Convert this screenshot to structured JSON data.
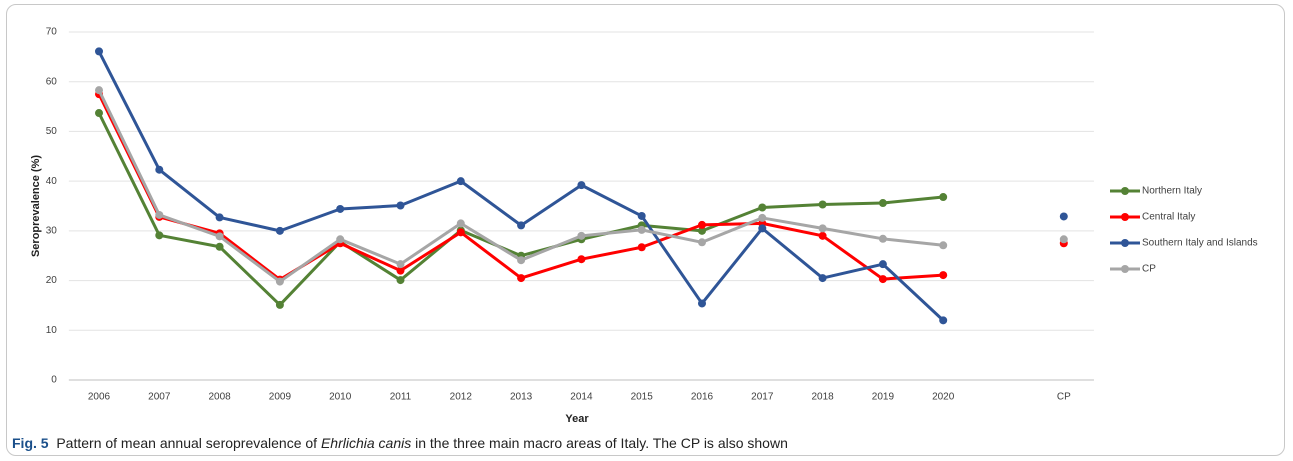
{
  "chart_data": {
    "type": "line",
    "xlabel": "Year",
    "ylabel": "Seroprevalence (%)",
    "categories": [
      "2006",
      "2007",
      "2008",
      "2009",
      "2010",
      "2011",
      "2012",
      "2013",
      "2014",
      "2015",
      "2016",
      "2017",
      "2018",
      "2019",
      "2020",
      null,
      "CP"
    ],
    "series": [
      {
        "name": "Northern Italy",
        "color": "#548235",
        "values": [
          53.7,
          29.1,
          26.8,
          15.1,
          27.8,
          20.1,
          30.1,
          25.0,
          28.3,
          31.1,
          30.0,
          34.7,
          35.3,
          35.6,
          36.8,
          null,
          null
        ]
      },
      {
        "name": "Central Italy",
        "color": "#ff0000",
        "values": [
          57.5,
          32.8,
          29.5,
          20.2,
          27.5,
          22.0,
          29.7,
          20.5,
          24.3,
          26.7,
          31.2,
          31.5,
          29.0,
          20.3,
          21.1,
          null,
          27.5
        ]
      },
      {
        "name": "Southern Italy and Islands",
        "color": "#2f5597",
        "values": [
          66.1,
          42.3,
          32.7,
          30.0,
          34.4,
          35.1,
          40.0,
          31.1,
          39.2,
          33.0,
          15.4,
          30.5,
          20.5,
          23.3,
          12.0,
          null,
          32.9
        ]
      },
      {
        "name": "CP",
        "color": "#a6a6a6",
        "values": [
          58.3,
          33.2,
          28.9,
          19.8,
          28.3,
          23.3,
          31.5,
          24.1,
          29.0,
          30.2,
          27.7,
          32.6,
          30.5,
          28.4,
          27.1,
          null,
          28.3
        ]
      }
    ],
    "ylim": [
      0,
      70
    ],
    "yticks": [
      0,
      10,
      20,
      30,
      40,
      50,
      60,
      70
    ],
    "grid": true,
    "legend": "right"
  },
  "caption": {
    "label": "Fig. 5",
    "parts": [
      "Pattern of mean annual seroprevalence of ",
      "Ehrlichia canis",
      " in the three main macro areas of Italy. The CP is also shown"
    ]
  }
}
